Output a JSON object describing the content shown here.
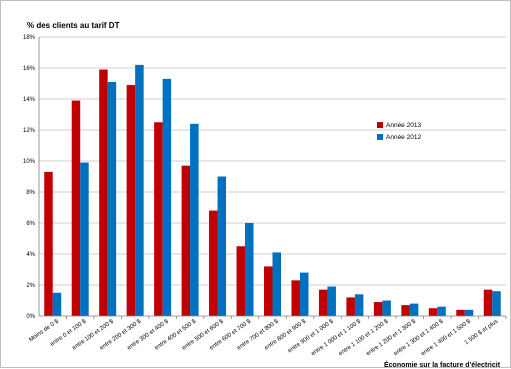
{
  "chart_data": {
    "type": "bar",
    "title": "% des clients au tarif DT",
    "xlabel": "Économie sur la facture d'électricit",
    "ylabel": "",
    "ylim": [
      0,
      18
    ],
    "yticks": [
      "0%",
      "2%",
      "4%",
      "6%",
      "8%",
      "10%",
      "12%",
      "14%",
      "16%",
      "18%"
    ],
    "grid": true,
    "legend_position": "right",
    "categories": [
      "Moins de 0 $",
      "entre 0 et 100 $",
      "entre 100 et 200 $",
      "entre 200 et 300 $",
      "entre 300 et 400 $",
      "entre 400 et 500 $",
      "entre 500 et 600 $",
      "entre 600 et 700 $",
      "entre 700 et 800 $",
      "entre 800 et 900 $",
      "entre 900 et 1 000 $",
      "entre 1 000 et 1 100 $",
      "entre 1 100 et 1 200 $",
      "entre 1 200 et 1 300 $",
      "entre 1 300 et 1 400 $",
      "entre 1 400 et 1 500 $",
      "1 500 $ et plus"
    ],
    "series": [
      {
        "name": "Année 2013",
        "color": "#c00000",
        "values": [
          9.3,
          13.9,
          15.9,
          14.9,
          12.5,
          9.7,
          6.8,
          4.5,
          3.2,
          2.3,
          1.7,
          1.2,
          0.9,
          0.7,
          0.5,
          0.4,
          1.7
        ]
      },
      {
        "name": "Année 2012",
        "color": "#0070c0",
        "values": [
          1.5,
          9.9,
          15.1,
          16.2,
          15.3,
          12.4,
          9.0,
          6.0,
          4.1,
          2.8,
          1.9,
          1.4,
          1.0,
          0.8,
          0.6,
          0.4,
          1.6
        ]
      }
    ]
  }
}
